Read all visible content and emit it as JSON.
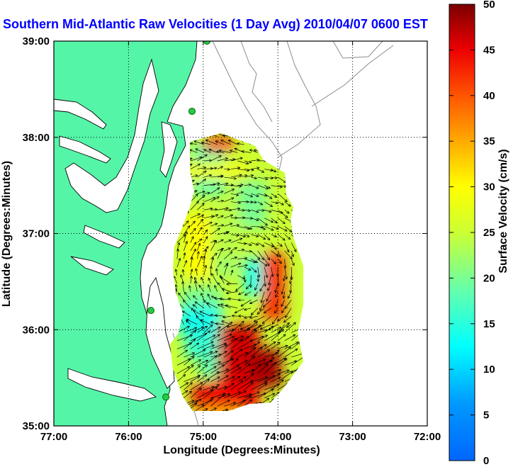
{
  "chart_data": {
    "type": "heatmap",
    "title": "Southern Mid-Atlantic Raw Velocities (1 Day Avg) 2010/04/07 0600 EST",
    "xlabel": "Longitude (Degrees:Minutes)",
    "ylabel": "Latitude (Degrees:Minutes)",
    "xlim": [
      -77,
      -72
    ],
    "ylim": [
      35,
      39
    ],
    "x_ticks": [
      {
        "value": -77,
        "label": "77:00"
      },
      {
        "value": -76,
        "label": "76:00"
      },
      {
        "value": -75,
        "label": "75:00"
      },
      {
        "value": -74,
        "label": "74:00"
      },
      {
        "value": -73,
        "label": "73:00"
      },
      {
        "value": -72,
        "label": "72:00"
      }
    ],
    "y_ticks": [
      {
        "value": 35,
        "label": "35:00"
      },
      {
        "value": 36,
        "label": "36:00"
      },
      {
        "value": 37,
        "label": "37:00"
      },
      {
        "value": 38,
        "label": "38:00"
      },
      {
        "value": 39,
        "label": "39:00"
      }
    ],
    "grid": true,
    "colorbar": {
      "label": "Surface Velocity (cm/s)",
      "range": [
        0,
        50
      ],
      "ticks": [
        0,
        5,
        10,
        15,
        20,
        25,
        30,
        35,
        40,
        45,
        50
      ],
      "colormap": "jet"
    },
    "field_regions": [
      {
        "lon": [
          -75.15,
          -74.7
        ],
        "lat": [
          37.4,
          37.95
        ],
        "velocity": 18
      },
      {
        "lon": [
          -75.2,
          -74.4
        ],
        "lat": [
          37.55,
          37.75
        ],
        "velocity": 28
      },
      {
        "lon": [
          -75.0,
          -74.6
        ],
        "lat": [
          37.85,
          38.0
        ],
        "velocity": 42
      },
      {
        "lon": [
          -74.55,
          -74.15
        ],
        "lat": [
          37.05,
          37.55
        ],
        "velocity": 20
      },
      {
        "lon": [
          -75.25,
          -74.9
        ],
        "lat": [
          36.55,
          37.2
        ],
        "velocity": 30
      },
      {
        "lon": [
          -74.9,
          -74.5
        ],
        "lat": [
          36.75,
          37.25
        ],
        "velocity": 24
      },
      {
        "lon": [
          -74.85,
          -74.55
        ],
        "lat": [
          36.55,
          36.75
        ],
        "velocity": 22
      },
      {
        "lon": [
          -74.45,
          -74.05
        ],
        "lat": [
          36.35,
          36.75
        ],
        "velocity": 14
      },
      {
        "lon": [
          -74.2,
          -73.9
        ],
        "lat": [
          36.1,
          36.8
        ],
        "velocity": 42
      },
      {
        "lon": [
          -75.3,
          -74.75
        ],
        "lat": [
          36.2,
          36.45
        ],
        "velocity": 20
      },
      {
        "lon": [
          -75.35,
          -74.75
        ],
        "lat": [
          35.95,
          36.25
        ],
        "velocity": 14
      },
      {
        "lon": [
          -75.25,
          -74.75
        ],
        "lat": [
          35.7,
          35.95
        ],
        "velocity": 16
      },
      {
        "lon": [
          -75.05,
          -74.65
        ],
        "lat": [
          35.5,
          35.75
        ],
        "velocity": 18
      },
      {
        "lon": [
          -74.8,
          -74.25
        ],
        "lat": [
          35.45,
          36.05
        ],
        "velocity": 46
      },
      {
        "lon": [
          -74.4,
          -73.95
        ],
        "lat": [
          35.4,
          35.8
        ],
        "velocity": 48
      },
      {
        "lon": [
          -75.15,
          -74.25
        ],
        "lat": [
          35.15,
          35.45
        ],
        "velocity": 45
      },
      {
        "lon": [
          -75.05,
          -74.5
        ],
        "lat": [
          35.08,
          35.2
        ],
        "velocity": 35
      }
    ],
    "stations": [
      {
        "lon": -74.95,
        "lat": 39.0
      },
      {
        "lon": -75.15,
        "lat": 38.27
      },
      {
        "lon": -75.7,
        "lat": 36.2
      },
      {
        "lon": -75.5,
        "lat": 35.3
      }
    ]
  },
  "colors": {
    "land": "#55f5a8",
    "coast": "#000000",
    "bathymetry": "#8c8c8c",
    "title": "#0000ff",
    "station": "#22cc44"
  }
}
